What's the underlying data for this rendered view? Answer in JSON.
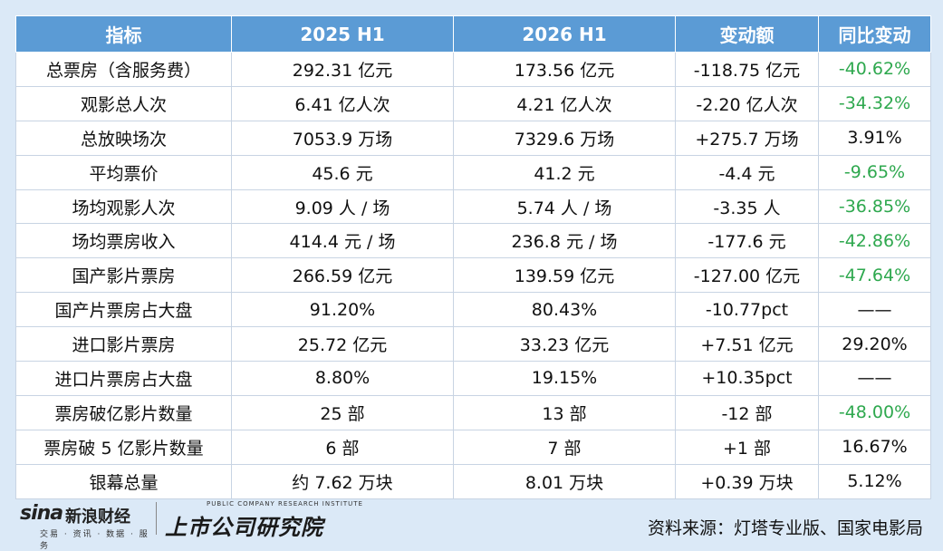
{
  "table": {
    "headers": [
      "指标",
      "2025 H1",
      "2026 H1",
      "变动额",
      "同比变动"
    ],
    "rows": [
      [
        "总票房（含服务费）",
        "292.31 亿元",
        "173.56 亿元",
        "-118.75 亿元",
        "-40.62%"
      ],
      [
        "观影总人次",
        "6.41 亿人次",
        "4.21 亿人次",
        "-2.20 亿人次",
        "-34.32%"
      ],
      [
        "总放映场次",
        "7053.9 万场",
        "7329.6 万场",
        "+275.7 万场",
        "3.91%"
      ],
      [
        "平均票价",
        "45.6 元",
        "41.2 元",
        "-4.4 元",
        "-9.65%"
      ],
      [
        "场均观影人次",
        "9.09 人 / 场",
        "5.74 人 / 场",
        "-3.35 人",
        "-36.85%"
      ],
      [
        "场均票房收入",
        "414.4 元 / 场",
        "236.8 元 / 场",
        "-177.6 元",
        "-42.86%"
      ],
      [
        "国产影片票房",
        "266.59 亿元",
        "139.59 亿元",
        "-127.00 亿元",
        "-47.64%"
      ],
      [
        "国产片票房占大盘",
        "91.20%",
        "80.43%",
        "-10.77pct",
        "——"
      ],
      [
        "进口影片票房",
        "25.72 亿元",
        "33.23 亿元",
        "+7.51 亿元",
        "29.20%"
      ],
      [
        "进口片票房占大盘",
        "8.80%",
        "19.15%",
        "+10.35pct",
        "——"
      ],
      [
        "票房破亿影片数量",
        "25 部",
        "13 部",
        "-12 部",
        "-48.00%"
      ],
      [
        "票房破 5 亿影片数量",
        "6 部",
        "7 部",
        "+1 部",
        "16.67%"
      ],
      [
        "银幕总量",
        "约 7.62 万块",
        "8.01 万块",
        "+0.39 万块",
        "5.12%"
      ]
    ]
  },
  "footer": {
    "sina_word": "sina",
    "sina_cn": "新浪财经",
    "sina_sub": "交易 · 资讯 · 数据 · 服务",
    "institute_en": "PUBLIC COMPANY RESEARCH INSTITUTE",
    "institute_cn": "上市公司研究院",
    "source": "资料来源：灯塔专业版、国家电影局"
  },
  "colors": {
    "header_bg": "#5b9bd5",
    "negative_change": "#2ea84e",
    "page_bg": "#dbe9f7"
  }
}
